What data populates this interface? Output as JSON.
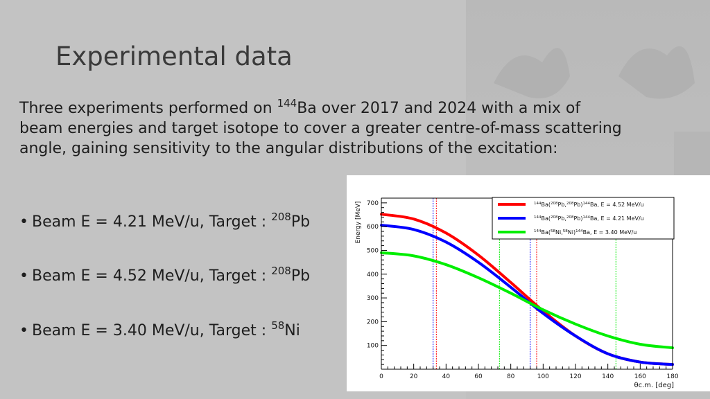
{
  "slide": {
    "title": "Experimental data",
    "intro": {
      "part1": "Three experiments performed on ",
      "sup": "144",
      "part2": "Ba over 2017 and 2024 with a mix of beam energies and target isotope to cover a greater centre-of-mass scattering angle, gaining sensitivity to the angular distributions of the excitation:"
    },
    "bullets": [
      {
        "text": "Beam E = 4.21 MeV/u, Target : ",
        "sup": "208",
        "suffix": "Pb"
      },
      {
        "text": "Beam E = 4.52 MeV/u, Target : ",
        "sup": "208",
        "suffix": "Pb"
      },
      {
        "text": "Beam E = 3.40 MeV/u, Target : ",
        "sup": "58",
        "suffix": "Ni"
      }
    ]
  },
  "chart_data": {
    "type": "line",
    "title": "",
    "xlabel": "θc.m. [deg]",
    "ylabel": "Energy [MeV]",
    "xlim": [
      0,
      180
    ],
    "ylim": [
      0,
      720
    ],
    "xticks": [
      0,
      20,
      40,
      60,
      80,
      100,
      120,
      140,
      160,
      180
    ],
    "yticks": [
      100,
      200,
      300,
      400,
      500,
      600,
      700
    ],
    "grid": false,
    "legend_position": "top-right",
    "series": [
      {
        "name": "144Ba(208Pb,208Pb)144Ba, E = 4.52 MeV/u",
        "legend_parts": [
          "144",
          "Ba(",
          "208",
          "Pb,",
          "208",
          "Pb)",
          "144",
          "Ba, E = 4.52 MeV/u"
        ],
        "color": "#ff0000",
        "x": [
          0,
          20,
          40,
          60,
          80,
          100,
          120,
          140,
          160,
          180
        ],
        "y": [
          652,
          632,
          573,
          480,
          365,
          245,
          140,
          65,
          30,
          20
        ]
      },
      {
        "name": "144Ba(208Pb,208Pb)144Ba, E = 4.21 MeV/u",
        "legend_parts": [
          "144",
          "Ba(",
          "208",
          "Pb,",
          "208",
          "Pb)",
          "144",
          "Ba, E = 4.21 MeV/u"
        ],
        "color": "#0000ff",
        "x": [
          0,
          20,
          40,
          60,
          80,
          100,
          120,
          140,
          160,
          180
        ],
        "y": [
          606,
          588,
          535,
          450,
          345,
          235,
          140,
          65,
          30,
          20
        ]
      },
      {
        "name": "144Ba(58Ni,58Ni)144Ba, E = 3.40 MeV/u",
        "legend_parts": [
          "144",
          "Ba(",
          "58",
          "Ni,",
          "58",
          "Ni)",
          "144",
          "Ba, E = 3.40 MeV/u"
        ],
        "color": "#00ee00",
        "x": [
          0,
          20,
          40,
          60,
          80,
          100,
          120,
          140,
          160,
          180
        ],
        "y": [
          490,
          477,
          440,
          385,
          320,
          250,
          190,
          140,
          105,
          90
        ]
      }
    ],
    "vertical_lines": [
      {
        "x": 32,
        "color": "#0000ff"
      },
      {
        "x": 34,
        "color": "#ff0000"
      },
      {
        "x": 73,
        "color": "#00ee00"
      },
      {
        "x": 92,
        "color": "#0000ff"
      },
      {
        "x": 96,
        "color": "#ff0000"
      },
      {
        "x": 145,
        "color": "#00ee00"
      }
    ]
  }
}
